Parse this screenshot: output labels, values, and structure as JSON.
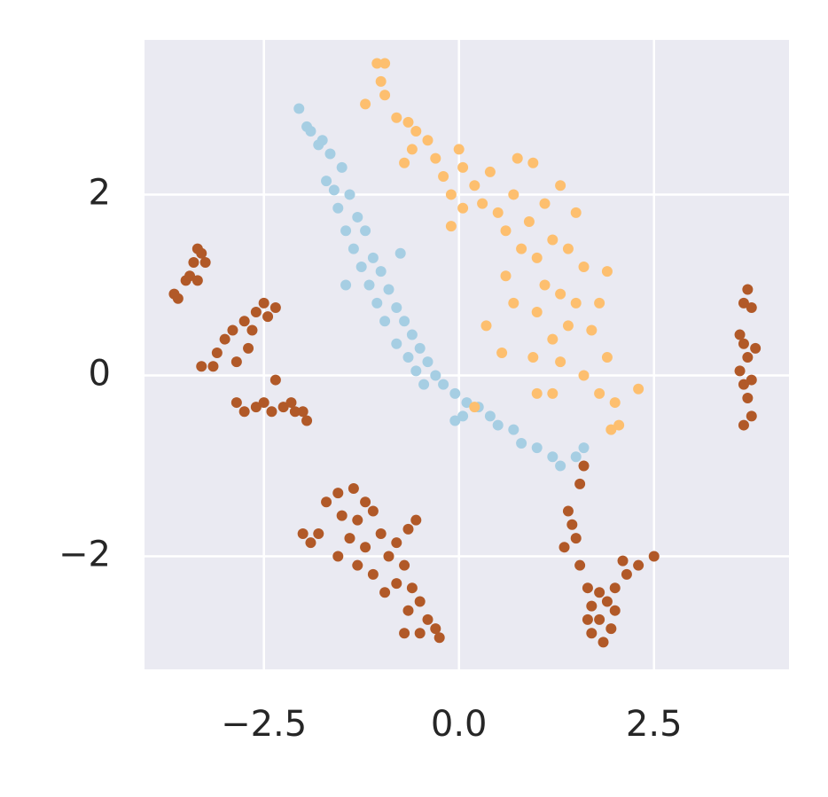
{
  "chart_data": {
    "type": "scatter",
    "xlim": [
      -4.03,
      4.23
    ],
    "ylim": [
      -3.25,
      3.71
    ],
    "xticks": [
      {
        "value": -2.5,
        "label": "−2.5"
      },
      {
        "value": 0,
        "label": "0.0"
      },
      {
        "value": 2.5,
        "label": "2.5"
      }
    ],
    "yticks": [
      {
        "value": -2,
        "label": "−2"
      },
      0,
      2
    ],
    "grid": true,
    "series": [
      {
        "color": "#a6cee3",
        "x": [
          -2.05,
          -1.95,
          -1.9,
          -1.8,
          -1.75,
          -1.65,
          -1.5,
          -1.7,
          -1.6,
          -1.4,
          -1.55,
          -1.3,
          -1.45,
          -1.2,
          -1.35,
          -1.1,
          -1.25,
          -1.0,
          -1.15,
          -0.9,
          -1.05,
          -0.8,
          -0.95,
          -0.7,
          -0.6,
          -0.8,
          -0.5,
          -0.65,
          -0.4,
          -0.55,
          -0.3,
          -0.45,
          -0.2,
          -0.05,
          0.1,
          0.25,
          0.05,
          -0.05,
          0.4,
          0.5,
          0.7,
          0.8,
          1.0,
          1.2,
          1.3,
          1.5,
          1.6,
          -1.45,
          -0.75
        ],
        "values": [
          2.95,
          2.75,
          2.7,
          2.55,
          2.6,
          2.45,
          2.3,
          2.15,
          2.05,
          2.0,
          1.85,
          1.75,
          1.6,
          1.6,
          1.4,
          1.3,
          1.2,
          1.15,
          1.0,
          0.95,
          0.8,
          0.75,
          0.6,
          0.6,
          0.45,
          0.35,
          0.3,
          0.2,
          0.15,
          0.05,
          0.0,
          -0.1,
          -0.1,
          -0.2,
          -0.3,
          -0.35,
          -0.45,
          -0.5,
          -0.45,
          -0.55,
          -0.6,
          -0.75,
          -0.8,
          -0.9,
          -1.0,
          -0.9,
          -0.8,
          1.0,
          1.35
        ]
      },
      {
        "color": "#fdbf6f",
        "x": [
          -1.05,
          -0.95,
          -1.0,
          -0.95,
          -1.2,
          -0.8,
          -0.65,
          -0.55,
          -0.4,
          -0.6,
          -0.3,
          -0.7,
          -0.2,
          0.0,
          0.05,
          -0.1,
          0.2,
          0.4,
          0.3,
          0.5,
          0.7,
          0.75,
          0.95,
          0.6,
          0.9,
          1.1,
          1.3,
          1.5,
          1.2,
          1.0,
          0.8,
          1.4,
          1.6,
          0.6,
          1.1,
          1.3,
          0.7,
          1.0,
          1.5,
          1.9,
          1.8,
          1.4,
          1.2,
          1.7,
          1.9,
          1.6,
          1.8,
          2.0,
          2.05,
          1.95,
          2.3,
          1.3,
          1.2,
          0.35,
          0.55,
          0.95,
          0.2,
          1.0,
          -0.1,
          0.05
        ],
        "values": [
          3.45,
          3.45,
          3.25,
          3.1,
          3.0,
          2.85,
          2.8,
          2.7,
          2.6,
          2.5,
          2.4,
          2.35,
          2.2,
          2.5,
          2.3,
          2.0,
          2.1,
          2.25,
          1.9,
          1.8,
          2.0,
          2.4,
          2.35,
          1.6,
          1.7,
          1.9,
          2.1,
          1.8,
          1.5,
          1.3,
          1.4,
          1.4,
          1.2,
          1.1,
          1.0,
          0.9,
          0.8,
          0.7,
          0.8,
          1.15,
          0.8,
          0.55,
          0.4,
          0.5,
          0.2,
          0.0,
          -0.2,
          -0.3,
          -0.55,
          -0.6,
          -0.15,
          0.15,
          -0.2,
          0.55,
          0.25,
          0.2,
          -0.35,
          -0.2,
          1.65,
          1.85
        ]
      },
      {
        "color": "#b15928",
        "x": [
          -3.65,
          -3.6,
          -3.5,
          -3.45,
          -3.4,
          -3.35,
          -3.3,
          -3.25,
          -3.35,
          -3.3,
          -3.15,
          -3.1,
          -3.0,
          -2.9,
          -2.85,
          -2.75,
          -2.65,
          -2.6,
          -2.5,
          -2.45,
          -2.35,
          -2.7,
          -2.85,
          -2.75,
          -2.6,
          -2.5,
          -2.4,
          -2.25,
          -2.15,
          -2.1,
          -2.0,
          -1.95,
          -2.35,
          -2.0,
          -1.9,
          -1.8,
          -1.7,
          -1.55,
          -1.35,
          -1.5,
          -1.4,
          -1.3,
          -1.2,
          -1.1,
          -1.0,
          -1.2,
          -1.3,
          -1.1,
          -0.9,
          -0.8,
          -0.65,
          -0.55,
          -0.7,
          -0.8,
          -0.6,
          -0.5,
          -0.65,
          -0.4,
          -0.5,
          -0.7,
          -0.3,
          -0.25,
          -1.55,
          -0.95,
          1.6,
          1.55,
          1.4,
          1.45,
          1.5,
          1.35,
          1.55,
          1.65,
          1.8,
          1.7,
          1.9,
          2.0,
          2.15,
          2.3,
          2.5,
          2.1,
          1.65,
          1.7,
          1.85,
          1.95,
          1.8,
          2.0,
          3.7,
          3.65,
          3.75,
          3.6,
          3.65,
          3.8,
          3.7,
          3.6,
          3.75,
          3.65,
          3.7,
          3.75,
          3.65
        ],
        "values": [
          0.9,
          0.85,
          1.05,
          1.1,
          1.25,
          1.4,
          1.35,
          1.25,
          1.05,
          0.1,
          0.1,
          0.25,
          0.4,
          0.5,
          0.15,
          0.6,
          0.5,
          0.7,
          0.8,
          0.65,
          0.75,
          0.3,
          -0.3,
          -0.4,
          -0.35,
          -0.3,
          -0.4,
          -0.35,
          -0.3,
          -0.4,
          -0.4,
          -0.5,
          -0.05,
          -1.75,
          -1.85,
          -1.75,
          -1.4,
          -1.3,
          -1.25,
          -1.55,
          -1.8,
          -1.6,
          -1.4,
          -1.5,
          -1.75,
          -1.9,
          -2.1,
          -2.2,
          -2.0,
          -1.85,
          -1.7,
          -1.6,
          -2.1,
          -2.3,
          -2.35,
          -2.5,
          -2.6,
          -2.7,
          -2.85,
          -2.85,
          -2.8,
          -2.9,
          -2.0,
          -2.4,
          -1.0,
          -1.2,
          -1.5,
          -1.65,
          -1.8,
          -1.9,
          -2.1,
          -2.35,
          -2.4,
          -2.55,
          -2.5,
          -2.35,
          -2.2,
          -2.1,
          -2.0,
          -2.05,
          -2.7,
          -2.85,
          -2.95,
          -2.8,
          -2.7,
          -2.6,
          0.95,
          0.8,
          0.75,
          0.45,
          0.35,
          0.3,
          0.2,
          0.05,
          -0.05,
          -0.1,
          -0.25,
          -0.45,
          -0.55
        ]
      }
    ]
  }
}
